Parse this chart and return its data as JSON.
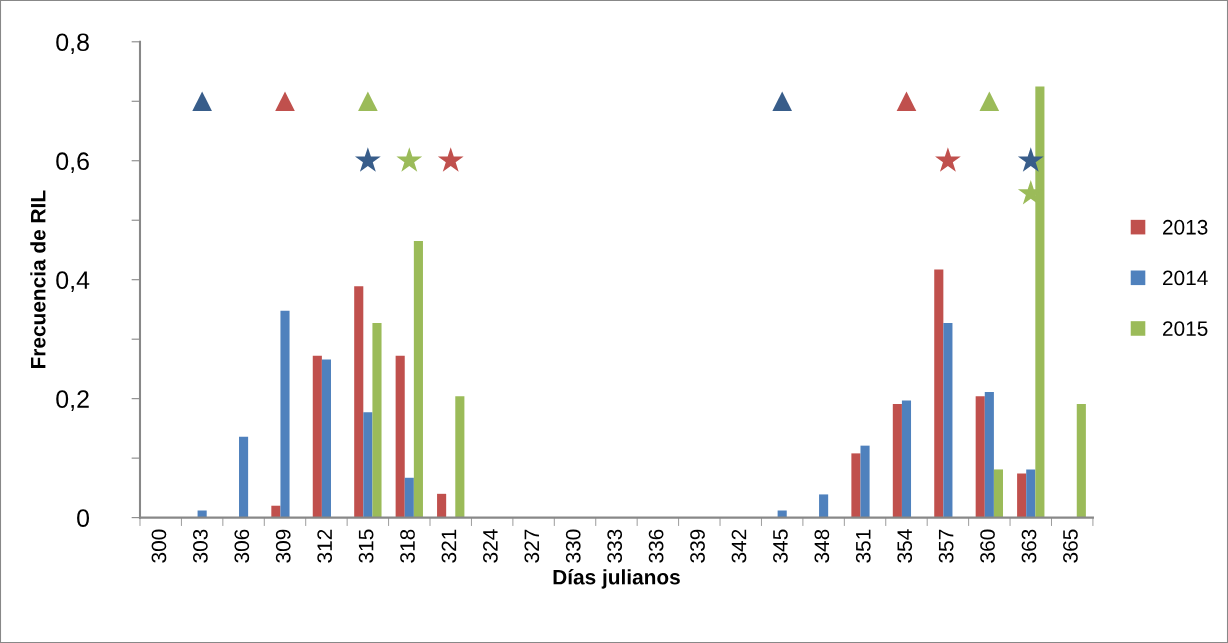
{
  "chart_data": {
    "type": "bar",
    "xlabel": "Días julianos",
    "ylabel": "Frecuencia de RIL",
    "categories": [
      "300",
      "303",
      "306",
      "309",
      "312",
      "315",
      "318",
      "321",
      "324",
      "327",
      "330",
      "333",
      "336",
      "339",
      "342",
      "345",
      "348",
      "351",
      "354",
      "357",
      "360",
      "363",
      "365"
    ],
    "series": [
      {
        "name": "2013",
        "color": "#c0504d",
        "values": [
          0,
          0,
          0,
          0.02,
          0.272,
          0.389,
          0.272,
          0.04,
          0,
          0,
          0,
          0,
          0,
          0,
          0,
          0,
          0,
          0.108,
          0.191,
          0.417,
          0.204,
          0.074,
          0
        ]
      },
      {
        "name": "2014",
        "color": "#4f81bd",
        "values": [
          0,
          0.012,
          0.136,
          0.348,
          0.266,
          0.177,
          0.067,
          0,
          0,
          0,
          0,
          0,
          0,
          0,
          0,
          0.012,
          0.039,
          0.121,
          0.197,
          0.327,
          0.211,
          0.081,
          0
        ]
      },
      {
        "name": "2015",
        "color": "#9bbb59",
        "values": [
          0,
          0,
          0,
          0,
          0,
          0.327,
          0.465,
          0.204,
          0,
          0,
          0,
          0,
          0,
          0,
          0,
          0,
          0,
          0,
          0,
          0,
          0.081,
          0.725,
          0.191
        ]
      },
      {
        "type": "scatter",
        "marker": "triangle",
        "color": "#385d8a",
        "x": [
          "303",
          "345"
        ],
        "values": [
          0.7,
          0.7
        ]
      },
      {
        "type": "scatter",
        "marker": "triangle",
        "color": "#c0504d",
        "x": [
          "309",
          "354"
        ],
        "values": [
          0.7,
          0.7
        ]
      },
      {
        "type": "scatter",
        "marker": "triangle",
        "color": "#9bbb59",
        "x": [
          "315",
          "360"
        ],
        "values": [
          0.7,
          0.7
        ]
      },
      {
        "type": "scatter",
        "marker": "star",
        "color": "#385d8a",
        "x": [
          "315",
          "363"
        ],
        "values": [
          0.6,
          0.6
        ]
      },
      {
        "type": "scatter",
        "marker": "star",
        "color": "#9bbb59",
        "x": [
          "318",
          "363"
        ],
        "values": [
          0.6,
          0.545
        ]
      },
      {
        "type": "scatter",
        "marker": "star",
        "color": "#c0504d",
        "x": [
          "321",
          "357"
        ],
        "values": [
          0.6,
          0.6
        ]
      }
    ],
    "ylim": [
      0,
      0.8
    ],
    "yticks": [
      0,
      {
        "value": 0.1,
        "label": null
      },
      {
        "value": 0.2,
        "label": "0,2"
      },
      {
        "value": 0.3,
        "label": null
      },
      {
        "value": 0.4,
        "label": "0,4"
      },
      {
        "value": 0.5,
        "label": null
      },
      {
        "value": 0.6,
        "label": "0,6"
      },
      {
        "value": 0.7,
        "label": null
      },
      {
        "value": 0.8,
        "label": "0,8"
      }
    ],
    "legend": "right",
    "grid": false
  }
}
